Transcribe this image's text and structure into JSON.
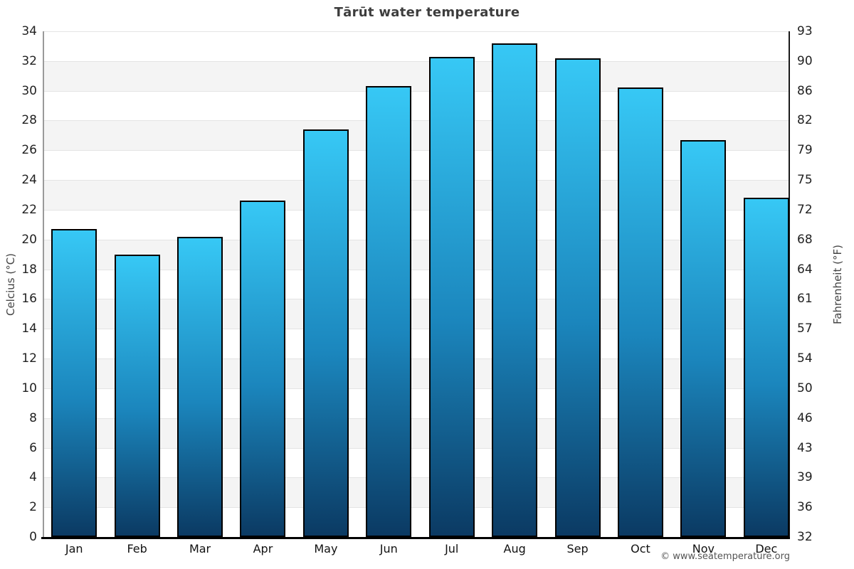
{
  "page": {
    "footer": "© www.seatemperature.org"
  },
  "chart_data": {
    "type": "bar",
    "title": "Tārūt water temperature",
    "xlabel": "",
    "ylabel_left": "Celcius (°C)",
    "ylabel_right": "Fahrenheit (°F)",
    "categories": [
      "Jan",
      "Feb",
      "Mar",
      "Apr",
      "May",
      "Jun",
      "Jul",
      "Aug",
      "Sep",
      "Oct",
      "Nov",
      "Dec"
    ],
    "values": [
      20.7,
      19.0,
      20.2,
      22.6,
      27.4,
      30.3,
      32.3,
      33.2,
      32.2,
      30.2,
      26.7,
      22.8
    ],
    "ylim": [
      0,
      34
    ],
    "yticks_celsius": [
      34,
      32,
      30,
      28,
      26,
      24,
      22,
      20,
      18,
      16,
      14,
      12,
      10,
      8,
      6,
      4,
      2,
      0
    ],
    "yticks_fahrenheit": [
      93,
      90,
      86,
      82,
      79,
      75,
      72,
      68,
      64,
      61,
      57,
      54,
      50,
      46,
      43,
      39,
      36,
      32
    ],
    "grid": "alternating-gray-bands-with-lines",
    "legend": "none",
    "colors": {
      "bar_top": "#37c8f5",
      "bar_bottom": "#0b3a63",
      "bar_border": "#000000",
      "band": "#f4f4f4",
      "gridline": "#e4e4e4",
      "title": "#3d3d3d",
      "tick_label": "#222222",
      "axis_left_line": "#9a9a9a",
      "axis_right_line": "#1a1a1a",
      "axis_bottom_line": "#000000",
      "footer": "#555555"
    }
  }
}
